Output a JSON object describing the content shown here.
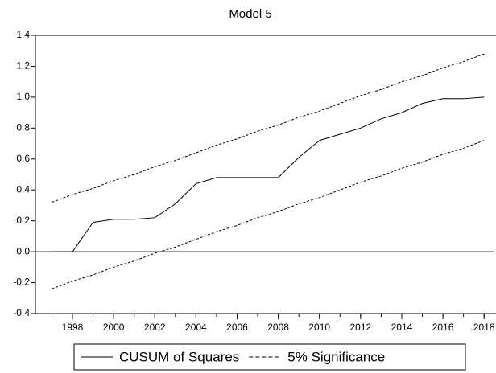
{
  "chart_data": {
    "type": "line",
    "title": "Model 5",
    "x": [
      1997,
      1998,
      1999,
      2000,
      2001,
      2002,
      2003,
      2004,
      2005,
      2006,
      2007,
      2008,
      2009,
      2010,
      2011,
      2012,
      2013,
      2014,
      2015,
      2016,
      2017,
      2018
    ],
    "series": [
      {
        "name": "CUSUM of Squares",
        "color": "#000000",
        "dash": false,
        "values": [
          0.0,
          0.0,
          0.19,
          0.21,
          0.21,
          0.22,
          0.31,
          0.44,
          0.48,
          0.48,
          0.48,
          0.48,
          0.61,
          0.72,
          0.76,
          0.8,
          0.86,
          0.9,
          0.96,
          0.99,
          0.99,
          1.0
        ]
      },
      {
        "name": "5% Significance",
        "color": "#000000",
        "dash": true,
        "values": [
          0.32,
          0.37,
          0.41,
          0.46,
          0.5,
          0.55,
          0.59,
          0.64,
          0.69,
          0.73,
          0.78,
          0.82,
          0.87,
          0.91,
          0.96,
          1.01,
          1.05,
          1.1,
          1.14,
          1.19,
          1.23,
          1.28
        ]
      },
      {
        "color": "#000000",
        "dash": true,
        "values": [
          -0.24,
          -0.19,
          -0.15,
          -0.1,
          -0.06,
          -0.01,
          0.03,
          0.08,
          0.13,
          0.17,
          0.22,
          0.26,
          0.31,
          0.35,
          0.4,
          0.45,
          0.49,
          0.54,
          0.58,
          0.63,
          0.67,
          0.72
        ]
      }
    ],
    "xlim": [
      1996.2,
      2018.5
    ],
    "xticks": [
      1998,
      2000,
      2002,
      2004,
      2006,
      2008,
      2010,
      2012,
      2014,
      2016,
      2018
    ],
    "ylim": [
      -0.4,
      1.4
    ],
    "yticks": [
      -0.4,
      -0.2,
      {
        "value": 0,
        "label": "0.0"
      },
      0.2,
      0.4,
      0.6,
      0.8,
      {
        "value": 1,
        "label": "1.0"
      },
      1.2,
      1.4
    ],
    "zero_line": true
  }
}
